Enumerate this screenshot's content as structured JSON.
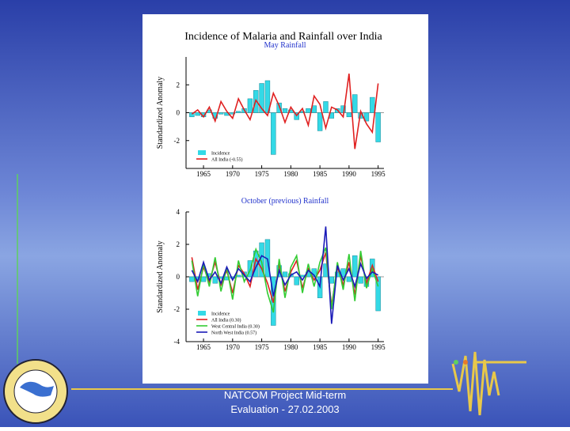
{
  "chart_data": [
    {
      "type": "combo",
      "title": "Incidence of Malaria and Rainfall over India",
      "subtitle": "May Rainfall",
      "y_label": "Standardized Anomaly",
      "x": [
        1963,
        1964,
        1965,
        1966,
        1967,
        1968,
        1969,
        1970,
        1971,
        1972,
        1973,
        1974,
        1975,
        1976,
        1977,
        1978,
        1979,
        1980,
        1981,
        1982,
        1983,
        1984,
        1985,
        1986,
        1987,
        1988,
        1989,
        1990,
        1991,
        1992,
        1993,
        1994,
        1995
      ],
      "xlim": [
        1962,
        1996
      ],
      "xticks": [
        1965,
        1970,
        1975,
        1980,
        1985,
        1990,
        1995
      ],
      "ylim": [
        -4,
        4
      ],
      "yticks": [
        -2,
        0,
        2
      ],
      "series": [
        {
          "name": "Incidence",
          "kind": "bar",
          "color": "#33d9e6",
          "values": [
            -0.3,
            -0.2,
            -0.3,
            0.2,
            -0.4,
            -0.1,
            -0.2,
            -0.1,
            0.1,
            0.3,
            1.0,
            1.6,
            2.1,
            2.3,
            -3.0,
            0.7,
            0.3,
            0.2,
            -0.5,
            0.1,
            0.3,
            0.5,
            -1.3,
            0.8,
            -0.4,
            0.3,
            0.5,
            -0.3,
            1.3,
            -0.4,
            -0.6,
            1.1,
            -2.1
          ]
        },
        {
          "name": "All India (-0.55)",
          "kind": "line",
          "color": "#e02020",
          "values": [
            -0.1,
            0.2,
            -0.3,
            0.4,
            -0.6,
            0.8,
            0.1,
            -0.4,
            1.0,
            0.2,
            -0.5,
            0.9,
            0.3,
            -0.2,
            1.4,
            0.5,
            -0.7,
            0.4,
            -0.2,
            0.3,
            -0.9,
            1.2,
            0.6,
            -1.1,
            0.4,
            0.2,
            -0.3,
            2.8,
            -2.6,
            0.1,
            -0.8,
            -1.4,
            2.1
          ]
        }
      ]
    },
    {
      "type": "combo",
      "subtitle": "October (previous) Rainfall",
      "y_label": "Standardized Anomaly",
      "x": [
        1963,
        1964,
        1965,
        1966,
        1967,
        1968,
        1969,
        1970,
        1971,
        1972,
        1973,
        1974,
        1975,
        1976,
        1977,
        1978,
        1979,
        1980,
        1981,
        1982,
        1983,
        1984,
        1985,
        1986,
        1987,
        1988,
        1989,
        1990,
        1991,
        1992,
        1993,
        1994,
        1995
      ],
      "xlim": [
        1962,
        1996
      ],
      "xticks": [
        1965,
        1970,
        1975,
        1980,
        1985,
        1990,
        1995
      ],
      "ylim": [
        -4,
        4
      ],
      "yticks": [
        -4,
        -2,
        0,
        2,
        4
      ],
      "series": [
        {
          "name": "Incidence",
          "kind": "bar",
          "color": "#33d9e6",
          "values": [
            -0.3,
            -0.2,
            -0.3,
            0.2,
            -0.4,
            -0.1,
            -0.2,
            -0.1,
            0.1,
            0.3,
            1.0,
            1.6,
            2.1,
            2.3,
            -3.0,
            0.7,
            0.3,
            0.2,
            -0.5,
            0.1,
            0.3,
            0.5,
            -1.3,
            0.8,
            -0.4,
            0.3,
            0.5,
            -0.3,
            1.3,
            -0.4,
            -0.6,
            1.1,
            -2.1
          ]
        },
        {
          "name": "All India (0.30)",
          "kind": "line",
          "color": "#e02020",
          "values": [
            1.2,
            -0.8,
            0.6,
            -0.3,
            0.9,
            -0.5,
            0.4,
            -1.0,
            0.7,
            0.2,
            -0.6,
            1.1,
            0.5,
            -0.4,
            -1.6,
            0.8,
            -0.9,
            0.3,
            1.0,
            -0.7,
            0.5,
            -0.2,
            0.4,
            1.5,
            -1.8,
            0.6,
            -0.5,
            0.9,
            -1.1,
            1.3,
            -0.4,
            0.7,
            -0.3
          ]
        },
        {
          "name": "West Central India (0.30)",
          "kind": "line",
          "color": "#33cc33",
          "values": [
            1.0,
            -1.2,
            0.8,
            -0.6,
            1.2,
            -0.9,
            0.6,
            -1.4,
            1.0,
            -0.3,
            0.4,
            1.7,
            0.9,
            -1.0,
            -2.2,
            1.1,
            -1.3,
            0.6,
            1.3,
            -1.0,
            0.8,
            -0.6,
            0.9,
            1.8,
            -2.0,
            0.9,
            -0.8,
            1.4,
            -1.5,
            1.6,
            -0.7,
            0.5,
            -0.6
          ]
        },
        {
          "name": "North West India (0.57)",
          "kind": "line",
          "color": "#1a1ab8",
          "values": [
            0.4,
            -0.3,
            0.9,
            -0.2,
            0.3,
            -0.4,
            0.6,
            -0.2,
            0.5,
            0.1,
            -0.3,
            0.6,
            1.3,
            1.1,
            -1.2,
            0.4,
            -0.5,
            0.1,
            0.3,
            -0.2,
            0.4,
            0.1,
            -0.6,
            3.1,
            -2.9,
            0.7,
            -0.2,
            0.5,
            -0.6,
            0.8,
            -0.1,
            0.3,
            0.1
          ]
        }
      ]
    }
  ],
  "footer": [
    "NATCOM Project Mid-term",
    "Evaluation - 27.02.2003"
  ]
}
